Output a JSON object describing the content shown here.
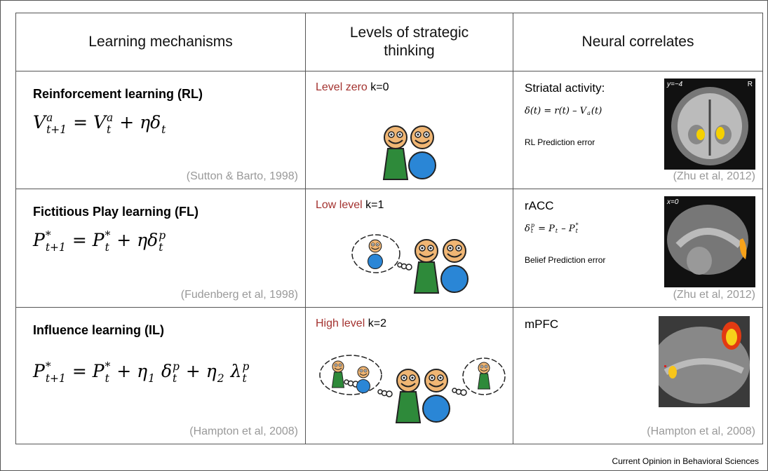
{
  "header": {
    "columns": [
      "Learning mechanisms",
      "Levels of strategic thinking",
      "Neural correlates"
    ]
  },
  "rows": [
    {
      "mechanism": "Reinforcement learning (RL)",
      "equation": [
        {
          "text": "V"
        },
        {
          "sup": "a",
          "sub": "t+1"
        },
        {
          "text": " = V"
        },
        {
          "sup": "a",
          "sub": "t"
        },
        {
          "text": " + ηδ"
        },
        {
          "sub": "t"
        }
      ],
      "citation": "(Sutton & Barto, 1998)",
      "level": {
        "name": "Level zero",
        "k": "k=0"
      },
      "correlate": {
        "region": "Striatal activity:",
        "equation": [
          {
            "text": "δ(t) = r(t) – V"
          },
          {
            "sub": "a"
          },
          {
            "text": "(t)"
          }
        ],
        "error": "RL Prediction error",
        "image_labels": [
          "y=−4",
          "R"
        ],
        "citation": "(Zhu et al, 2012)"
      }
    },
    {
      "mechanism": "Fictitious Play learning (FL)",
      "equation": [
        {
          "text": "P"
        },
        {
          "sup": "*",
          "sub": "t+1"
        },
        {
          "text": " = P"
        },
        {
          "sup": "*",
          "sub": "t"
        },
        {
          "text": " + ηδ"
        },
        {
          "sup": "p",
          "sub": "t"
        }
      ],
      "citation": "(Fudenberg et al, 1998)",
      "level": {
        "name": "Low level",
        "k": "k=1"
      },
      "correlate": {
        "region": "rACC",
        "equation": [
          {
            "text": "δ"
          },
          {
            "sup": "p",
            "sub": "t"
          },
          {
            "text": " = P"
          },
          {
            "sub": "t"
          },
          {
            "text": " – P"
          },
          {
            "sup": "*",
            "sub": "t"
          }
        ],
        "error": "Belief Prediction error",
        "image_labels": [
          "x=0"
        ],
        "citation": "(Zhu et al, 2012)"
      }
    },
    {
      "mechanism": "Influence learning (IL)",
      "equation": [
        {
          "text": "P"
        },
        {
          "sup": "*",
          "sub": "t+1"
        },
        {
          "text": " = P"
        },
        {
          "sup": "*",
          "sub": "t"
        },
        {
          "text": " + η"
        },
        {
          "sub": "1"
        },
        {
          "text": " δ"
        },
        {
          "sup": "p",
          "sub": "t"
        },
        {
          "text": " + η"
        },
        {
          "sub": "2"
        },
        {
          "text": " λ"
        },
        {
          "sup": "p",
          "sub": "t"
        }
      ],
      "citation": "(Hampton et al, 2008)",
      "level": {
        "name": "High level",
        "k": "k=2"
      },
      "correlate": {
        "region": "mPFC",
        "citation": "(Hampton et al, 2008)"
      }
    }
  ],
  "footer": "Current Opinion in Behavioral Sciences"
}
